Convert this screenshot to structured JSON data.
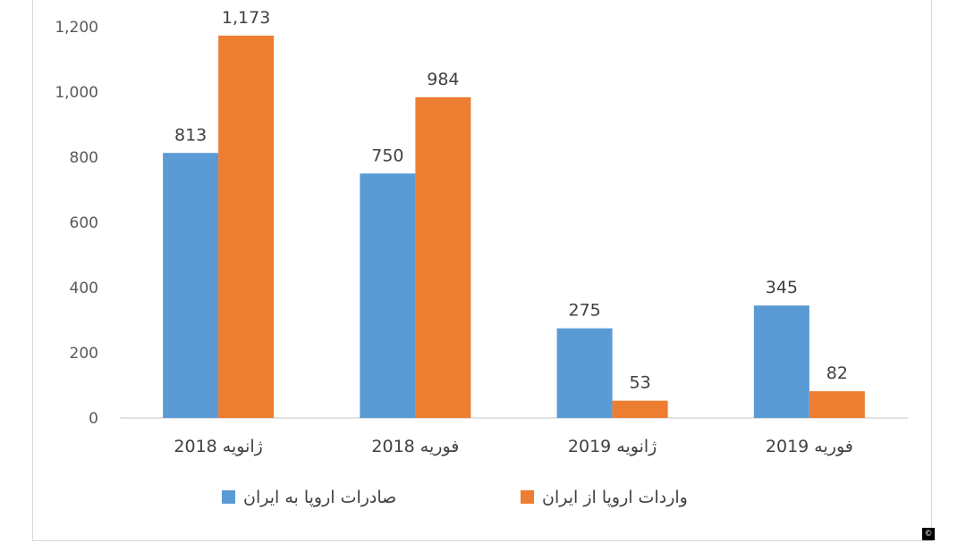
{
  "chart_data": {
    "type": "bar",
    "categories": [
      "ژانویه 2018",
      "فوریه 2018",
      "ژانویه 2019",
      "فوریه 2019"
    ],
    "series": [
      {
        "name": "صادرات اروپا به ایران",
        "values": [
          813,
          750,
          275,
          345
        ],
        "labels": [
          "813",
          "750",
          "275",
          "345"
        ],
        "color": "#5b9bd5"
      },
      {
        "name": "واردات اروپا از ایران",
        "values": [
          1173,
          984,
          53,
          82
        ],
        "labels": [
          "1,173",
          "984",
          "53",
          "82"
        ],
        "color": "#ed7d31"
      }
    ],
    "ylim": [
      0,
      1200
    ],
    "yticks": [
      0,
      200,
      400,
      600,
      800,
      1000,
      1200
    ],
    "ytick_labels": [
      "0",
      "200",
      "400",
      "600",
      "800",
      "1,000",
      "1,200"
    ],
    "grid": false,
    "legend": "bottom",
    "title": "",
    "xlabel": "",
    "ylabel": ""
  },
  "badge": {
    "text": "©"
  }
}
